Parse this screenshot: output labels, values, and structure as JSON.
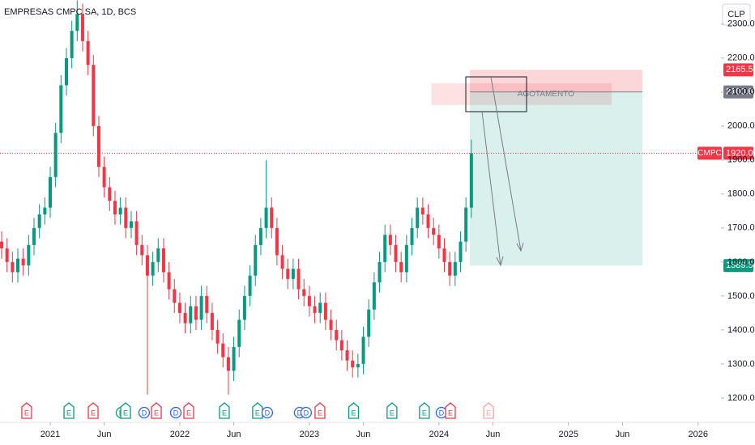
{
  "chart_data": {
    "type": "candlestick",
    "title": "EMPRESAS CMPC SA, 1D, BCS",
    "currency": "CLP",
    "up_color": "#089981",
    "down_color": "#f23645",
    "xlim": [
      -4.65,
      65.27
    ],
    "ylim": [
      1133,
      2371
    ],
    "xticks": [
      {
        "value": 0,
        "label": "2021"
      },
      {
        "value": 5,
        "label": "Jun"
      },
      {
        "value": 12,
        "label": "2022"
      },
      {
        "value": 17,
        "label": "Jun"
      },
      {
        "value": 24,
        "label": "2023"
      },
      {
        "value": 29,
        "label": "Jun"
      },
      {
        "value": 36,
        "label": "2024"
      },
      {
        "value": 41,
        "label": "Jun"
      },
      {
        "value": 48,
        "label": "2025"
      },
      {
        "value": 53,
        "label": "Jun"
      },
      {
        "value": 60,
        "label": "2026"
      }
    ],
    "yticks": [
      {
        "value": 1200,
        "label": "1200.0"
      },
      {
        "value": 1300,
        "label": "1300.0"
      },
      {
        "value": 1400,
        "label": "1400.0"
      },
      {
        "value": 1500,
        "label": "1500.0"
      },
      {
        "value": 1600,
        "label": "1600.0"
      },
      {
        "value": 1700,
        "label": "1700.0"
      },
      {
        "value": 1800,
        "label": "1800.0"
      },
      {
        "value": 1900,
        "label": "1900.0"
      },
      {
        "value": 2000,
        "label": "2000.0"
      },
      {
        "value": 2100,
        "label": "2100.0"
      },
      {
        "value": 2200,
        "label": "2200.0"
      },
      {
        "value": 2300,
        "label": "2300.0"
      }
    ],
    "x": [
      -4.5,
      -4,
      -3.5,
      -3,
      -2.5,
      -2,
      -1.5,
      -1,
      -0.5,
      0,
      0.5,
      1,
      1.5,
      2,
      2.5,
      3,
      3.5,
      4,
      4.5,
      5,
      5.5,
      6,
      6.5,
      7,
      7.5,
      8,
      8.5,
      9,
      9.5,
      10,
      10.5,
      11,
      11.5,
      12,
      12.5,
      13,
      13.5,
      14,
      14.5,
      15,
      15.5,
      16,
      16.5,
      17,
      17.5,
      18,
      18.5,
      19,
      19.5,
      20,
      20.5,
      21,
      21.5,
      22,
      22.5,
      23,
      23.5,
      24,
      24.5,
      25,
      25.5,
      26,
      26.5,
      27,
      27.5,
      28,
      28.5,
      29,
      29.5,
      30,
      30.5,
      31,
      31.5,
      32,
      32.5,
      33,
      33.5,
      34,
      34.5,
      35,
      35.5,
      36,
      36.5,
      37,
      37.5,
      38,
      38.5,
      39
    ],
    "open": [
      1660,
      1640,
      1600,
      1570,
      1610,
      1590,
      1650,
      1700,
      1740,
      1760,
      1850,
      1980,
      2120,
      2200,
      2280,
      2330,
      2250,
      2180,
      2000,
      1880,
      1820,
      1780,
      1740,
      1760,
      1700,
      1720,
      1650,
      1620,
      1560,
      1600,
      1640,
      1570,
      1520,
      1480,
      1450,
      1420,
      1470,
      1430,
      1500,
      1450,
      1400,
      1360,
      1320,
      1280,
      1350,
      1430,
      1500,
      1560,
      1650,
      1700,
      1760,
      1700,
      1620,
      1580,
      1550,
      1580,
      1520,
      1500,
      1470,
      1450,
      1480,
      1430,
      1400,
      1370,
      1340,
      1310,
      1290,
      1300,
      1380,
      1460,
      1540,
      1600,
      1680,
      1650,
      1600,
      1570,
      1650,
      1700,
      1760,
      1740,
      1700,
      1680,
      1640,
      1600,
      1560,
      1600,
      1660,
      1760
    ],
    "high": [
      1690,
      1670,
      1630,
      1640,
      1640,
      1680,
      1730,
      1770,
      1790,
      1880,
      2010,
      2150,
      2230,
      2310,
      2370,
      2360,
      2280,
      2210,
      2030,
      1910,
      1850,
      1810,
      1790,
      1790,
      1750,
      1750,
      1680,
      1650,
      1630,
      1670,
      1670,
      1600,
      1550,
      1510,
      1480,
      1500,
      1500,
      1530,
      1530,
      1480,
      1430,
      1390,
      1350,
      1380,
      1460,
      1530,
      1590,
      1680,
      1730,
      1900,
      1790,
      1730,
      1650,
      1610,
      1610,
      1610,
      1550,
      1530,
      1500,
      1510,
      1510,
      1460,
      1430,
      1400,
      1370,
      1340,
      1330,
      1410,
      1490,
      1570,
      1630,
      1710,
      1710,
      1680,
      1630,
      1680,
      1730,
      1790,
      1790,
      1770,
      1730,
      1710,
      1670,
      1630,
      1630,
      1690,
      1790,
      1960
    ],
    "low": [
      1610,
      1570,
      1540,
      1540,
      1560,
      1560,
      1620,
      1670,
      1710,
      1730,
      1820,
      1950,
      2090,
      2170,
      2250,
      2220,
      2150,
      1970,
      1850,
      1790,
      1750,
      1710,
      1710,
      1670,
      1670,
      1620,
      1590,
      1210,
      1530,
      1570,
      1540,
      1490,
      1450,
      1420,
      1390,
      1390,
      1400,
      1400,
      1420,
      1370,
      1330,
      1290,
      1210,
      1250,
      1320,
      1400,
      1470,
      1530,
      1620,
      1670,
      1670,
      1590,
      1550,
      1520,
      1520,
      1490,
      1470,
      1440,
      1420,
      1420,
      1400,
      1370,
      1340,
      1310,
      1280,
      1260,
      1260,
      1270,
      1350,
      1430,
      1510,
      1570,
      1620,
      1570,
      1540,
      1540,
      1620,
      1670,
      1710,
      1670,
      1650,
      1610,
      1570,
      1530,
      1530,
      1570,
      1630,
      1730
    ],
    "close": [
      1640,
      1600,
      1570,
      1610,
      1590,
      1650,
      1700,
      1740,
      1760,
      1850,
      1980,
      2120,
      2200,
      2280,
      2330,
      2250,
      2180,
      2000,
      1880,
      1820,
      1780,
      1740,
      1760,
      1700,
      1720,
      1650,
      1620,
      1560,
      1600,
      1640,
      1570,
      1520,
      1480,
      1450,
      1420,
      1470,
      1430,
      1500,
      1450,
      1400,
      1360,
      1320,
      1280,
      1350,
      1430,
      1500,
      1560,
      1650,
      1700,
      1760,
      1700,
      1620,
      1580,
      1550,
      1580,
      1520,
      1500,
      1470,
      1450,
      1480,
      1430,
      1400,
      1370,
      1340,
      1310,
      1290,
      1300,
      1380,
      1460,
      1540,
      1600,
      1680,
      1650,
      1600,
      1570,
      1650,
      1700,
      1760,
      1740,
      1700,
      1680,
      1640,
      1600,
      1560,
      1600,
      1660,
      1760,
      1920
    ],
    "last_price": {
      "symbol": "CMPC",
      "value": 1920,
      "label": "1920.0"
    },
    "position": {
      "x_start": 38.86,
      "x_end": 54.84,
      "stop": {
        "value": 2165.5,
        "label": "2165.5"
      },
      "entry": {
        "value": 2100.6,
        "label": "2100.6"
      },
      "target": {
        "value": 1589.5,
        "label": "1589.5"
      }
    },
    "zone": {
      "x_start": 35.3,
      "x_end": 52,
      "top": 2126,
      "bottom": 2062,
      "label": "AGOTAMENTO"
    },
    "events": {
      "labels": [
        "E",
        "E",
        "E",
        "D",
        "E",
        "D",
        "E",
        "D",
        "E",
        "E",
        "E",
        "D",
        "D",
        "D",
        "E",
        "E",
        "E",
        "E",
        "D",
        "E",
        "E"
      ],
      "x": [
        -2.18,
        1.73,
        3.98,
        6.6,
        6.98,
        8.7,
        9.83,
        11.63,
        12.83,
        16.13,
        19.2,
        20.1,
        23.1,
        23.7,
        24.98,
        28.1,
        31.65,
        34.65,
        36.23,
        37.06,
        40.6
      ],
      "colors": [
        "#f23645",
        "#089981",
        "#f23645",
        "#089981",
        "#089981",
        "#2962ff",
        "#f23645",
        "#2962ff",
        "#f23645",
        "#089981",
        "#089981",
        "#2962ff",
        "#2962ff",
        "#2962ff",
        "#f23645",
        "#089981",
        "#089981",
        "#089981",
        "#2962ff",
        "#f23645",
        "#f5a3ab"
      ]
    }
  }
}
